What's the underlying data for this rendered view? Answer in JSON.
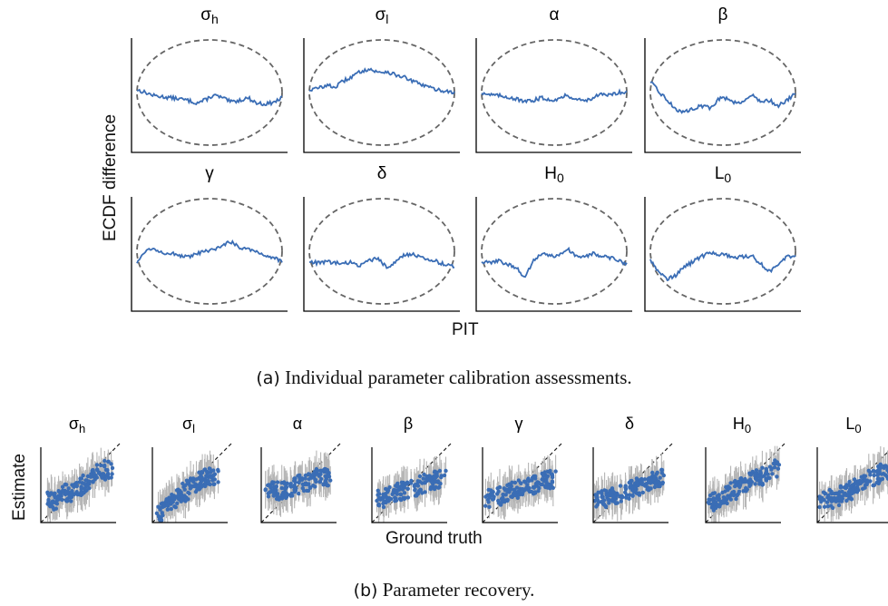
{
  "figure_a": {
    "ylabel": "ECDF difference",
    "xlabel": "PIT",
    "caption_label": "(a)",
    "caption_text": "Individual parameter calibration assessments."
  },
  "figure_b": {
    "ylabel": "Estimate",
    "xlabel": "Ground truth",
    "caption_label": "(b)",
    "caption_text": "Parameter recovery."
  },
  "colors": {
    "series": "#3a6db5",
    "band": "#666666",
    "errorbar": "#b5b5b5",
    "identity": "#222222"
  },
  "chart_data": [
    {
      "type": "line",
      "title": "(a) Individual parameter calibration assessments.",
      "xlabel": "PIT",
      "ylabel": "ECDF difference",
      "xlim": [
        0,
        1
      ],
      "ylim": [
        -1,
        1
      ],
      "grid": false,
      "panels": [
        {
          "name": "σh",
          "base": "σ",
          "sub": "h",
          "values": [
            0.05,
            0.0,
            -0.06,
            -0.08,
            -0.1,
            -0.12,
            -0.15,
            -0.2,
            -0.14,
            -0.05,
            -0.1,
            -0.18,
            -0.15,
            -0.1,
            -0.2,
            -0.22,
            -0.19,
            -0.1
          ]
        },
        {
          "name": "σl",
          "base": "σ",
          "sub": "l",
          "values": [
            0.05,
            0.08,
            0.14,
            0.1,
            0.22,
            0.3,
            0.4,
            0.45,
            0.38,
            0.4,
            0.34,
            0.3,
            0.22,
            0.16,
            0.1,
            0.05,
            0.03,
            0.0
          ]
        },
        {
          "name": "α",
          "base": "α",
          "sub": "",
          "values": [
            0.0,
            -0.04,
            -0.06,
            -0.08,
            -0.12,
            -0.18,
            -0.15,
            -0.1,
            -0.14,
            -0.12,
            -0.05,
            -0.12,
            -0.16,
            -0.1,
            -0.04,
            -0.05,
            0.0,
            0.02
          ]
        },
        {
          "name": "β",
          "base": "β",
          "sub": "",
          "values": [
            0.2,
            0.02,
            -0.15,
            -0.32,
            -0.38,
            -0.3,
            -0.25,
            -0.3,
            -0.12,
            -0.1,
            -0.2,
            -0.15,
            -0.05,
            -0.18,
            -0.15,
            -0.25,
            -0.15,
            -0.02
          ]
        },
        {
          "name": "γ",
          "base": "γ",
          "sub": "",
          "values": [
            -0.22,
            0.02,
            0.05,
            -0.02,
            -0.04,
            -0.08,
            -0.12,
            -0.05,
            0.0,
            0.02,
            0.12,
            0.18,
            0.08,
            0.05,
            0.0,
            -0.08,
            -0.12,
            -0.2
          ]
        },
        {
          "name": "δ",
          "base": "δ",
          "sub": "",
          "values": [
            -0.2,
            -0.22,
            -0.2,
            -0.22,
            -0.24,
            -0.2,
            -0.28,
            -0.18,
            -0.12,
            -0.3,
            -0.22,
            -0.08,
            -0.05,
            -0.12,
            -0.14,
            -0.2,
            -0.26,
            -0.28
          ]
        },
        {
          "name": "H0",
          "base": "H",
          "sub": "0",
          "values": [
            -0.2,
            -0.22,
            -0.18,
            -0.25,
            -0.3,
            -0.5,
            -0.2,
            -0.05,
            -0.08,
            -0.1,
            0.05,
            -0.08,
            -0.12,
            -0.04,
            -0.1,
            -0.12,
            -0.16,
            -0.25
          ]
        },
        {
          "name": "L0",
          "base": "L",
          "sub": "0",
          "values": [
            -0.15,
            -0.4,
            -0.52,
            -0.45,
            -0.3,
            -0.2,
            -0.1,
            -0.02,
            -0.06,
            -0.08,
            -0.12,
            -0.1,
            -0.1,
            -0.25,
            -0.38,
            -0.25,
            -0.1,
            -0.1
          ]
        }
      ]
    },
    {
      "type": "scatter",
      "title": "(b) Parameter recovery.",
      "xlabel": "Ground truth",
      "ylabel": "Estimate",
      "xlim": [
        0,
        1
      ],
      "ylim": [
        0,
        1
      ],
      "grid": false,
      "panels": [
        {
          "name": "σh",
          "base": "σ",
          "sub": "h",
          "x": [
            0.1,
            0.2,
            0.3,
            0.42,
            0.55,
            0.7,
            0.92
          ],
          "y": [
            0.3,
            0.28,
            0.38,
            0.42,
            0.48,
            0.62,
            0.72
          ]
        },
        {
          "name": "σl",
          "base": "σ",
          "sub": "l",
          "x": [
            0.08,
            0.2,
            0.3,
            0.45,
            0.6,
            0.7,
            0.85
          ],
          "y": [
            0.1,
            0.22,
            0.3,
            0.42,
            0.55,
            0.6,
            0.62
          ]
        },
        {
          "name": "α",
          "base": "α",
          "sub": "",
          "x": [
            0.05,
            0.2,
            0.35,
            0.5,
            0.65,
            0.78,
            0.9
          ],
          "y": [
            0.4,
            0.42,
            0.45,
            0.5,
            0.55,
            0.62,
            0.6
          ]
        },
        {
          "name": "β",
          "base": "β",
          "sub": "",
          "x": [
            0.05,
            0.2,
            0.35,
            0.5,
            0.65,
            0.8,
            0.95
          ],
          "y": [
            0.3,
            0.34,
            0.4,
            0.45,
            0.5,
            0.55,
            0.58
          ]
        },
        {
          "name": "γ",
          "base": "γ",
          "sub": "",
          "x": [
            0.05,
            0.2,
            0.35,
            0.5,
            0.65,
            0.8,
            0.95
          ],
          "y": [
            0.3,
            0.35,
            0.4,
            0.45,
            0.5,
            0.55,
            0.58
          ]
        },
        {
          "name": "δ",
          "base": "δ",
          "sub": "",
          "x": [
            0.05,
            0.2,
            0.35,
            0.5,
            0.65,
            0.8,
            0.95
          ],
          "y": [
            0.3,
            0.33,
            0.38,
            0.45,
            0.5,
            0.55,
            0.62
          ]
        },
        {
          "name": "H0",
          "base": "H",
          "sub": "0",
          "x": [
            0.05,
            0.2,
            0.35,
            0.5,
            0.65,
            0.8,
            0.95
          ],
          "y": [
            0.25,
            0.32,
            0.42,
            0.5,
            0.58,
            0.65,
            0.72
          ]
        },
        {
          "name": "L0",
          "base": "L",
          "sub": "0",
          "x": [
            0.05,
            0.2,
            0.35,
            0.5,
            0.65,
            0.8,
            0.95
          ],
          "y": [
            0.28,
            0.32,
            0.38,
            0.45,
            0.55,
            0.62,
            0.7
          ]
        }
      ]
    }
  ]
}
